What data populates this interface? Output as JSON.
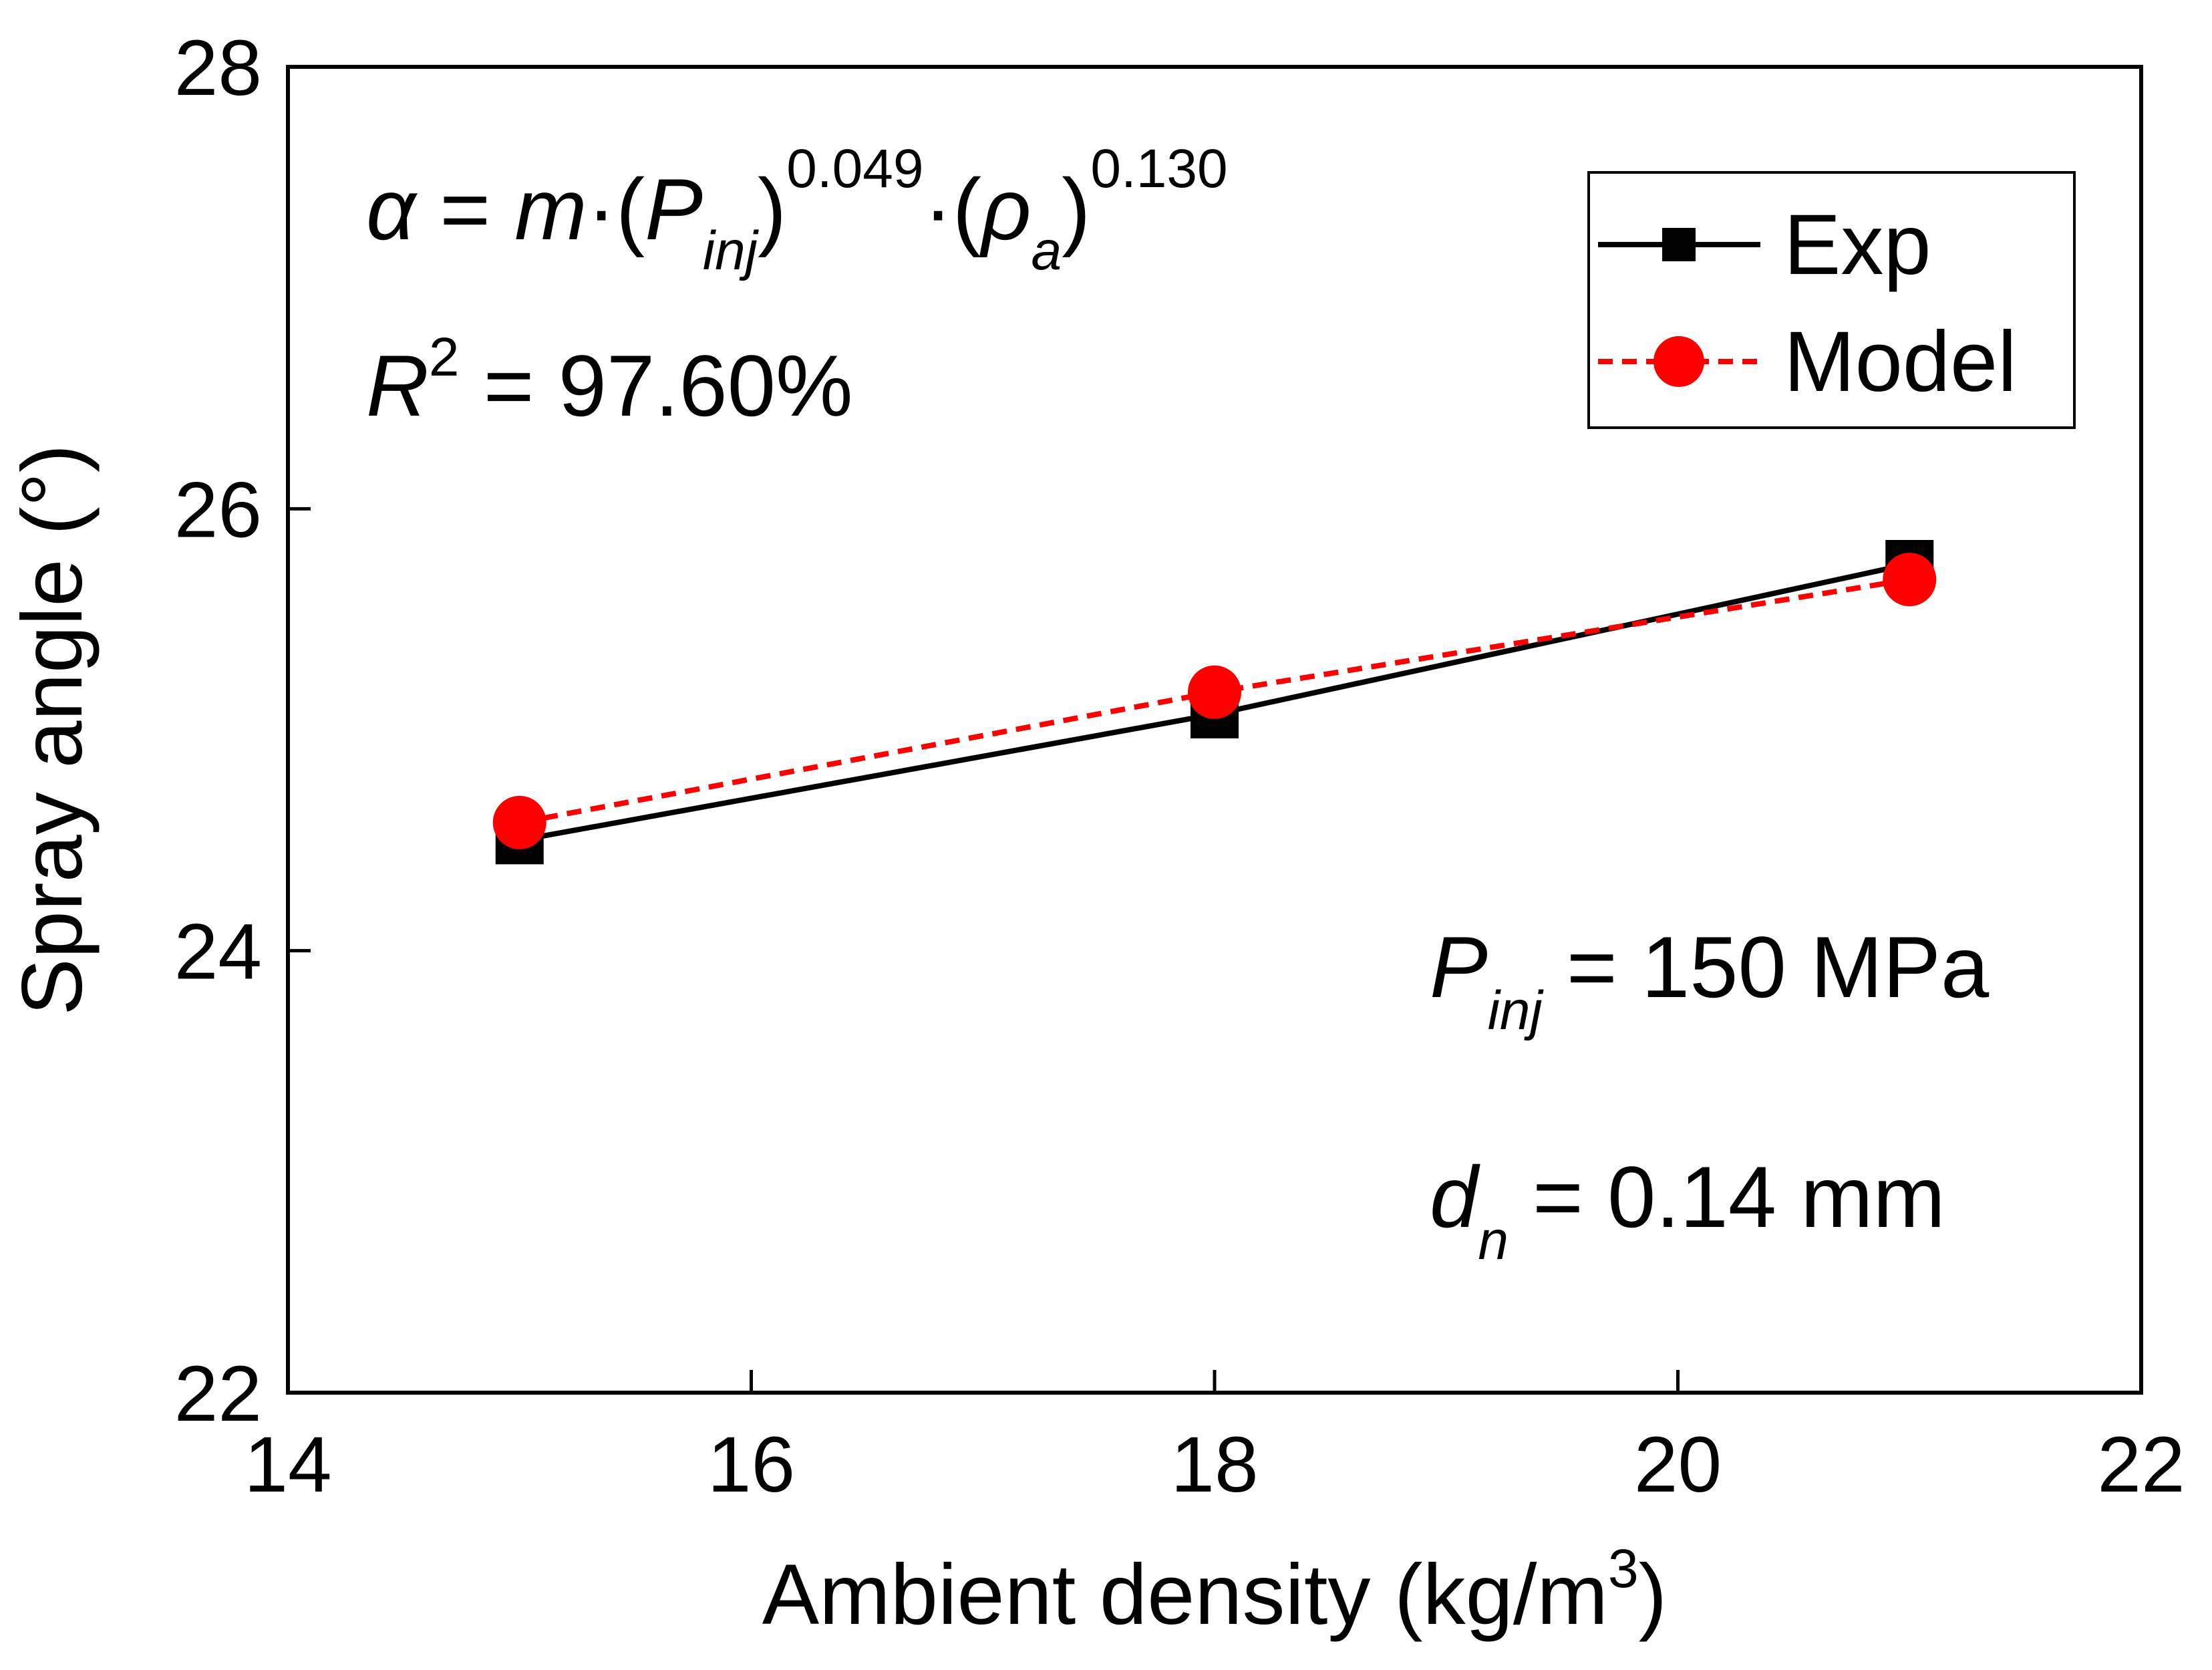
{
  "chart_data": {
    "type": "line",
    "xlabel": "Ambient density (kg/m",
    "xlabel_sup": "3",
    "xlabel_end": ")",
    "ylabel": "Spray angle (°)",
    "xlim": [
      14,
      22
    ],
    "ylim": [
      22,
      28
    ],
    "xticks": [
      14,
      16,
      18,
      20,
      22
    ],
    "yticks": [
      22,
      24,
      26,
      28
    ],
    "x": [
      15,
      18,
      21
    ],
    "series": [
      {
        "name": "Exp",
        "values": [
          24.5,
          25.07,
          25.75
        ],
        "color": "#000000",
        "marker": "square",
        "line": "solid"
      },
      {
        "name": "Model",
        "values": [
          24.58,
          25.17,
          25.68
        ],
        "color": "#ff0000",
        "marker": "circle",
        "line": "dashed"
      }
    ],
    "legend_position": "top-right",
    "grid": false
  },
  "annotations": {
    "formula": {
      "alpha": "α",
      "eq": " = ",
      "m": "m",
      "dot1": "·(",
      "p": "P",
      "p_sub": "inj",
      "close1": ")",
      "exp1": "0.049",
      "dot2": "·(",
      "rho": "ρ",
      "rho_sub": "a",
      "close2": ")",
      "exp2": "0.130"
    },
    "r2": {
      "r": "R",
      "sup": "2",
      "rest": " = 97.60%"
    },
    "pinj": {
      "p": "P",
      "sub": "inj",
      "rest": " = 150 MPa"
    },
    "dn": {
      "d": "d",
      "sub": "n",
      "rest": " = 0.14 mm"
    }
  }
}
